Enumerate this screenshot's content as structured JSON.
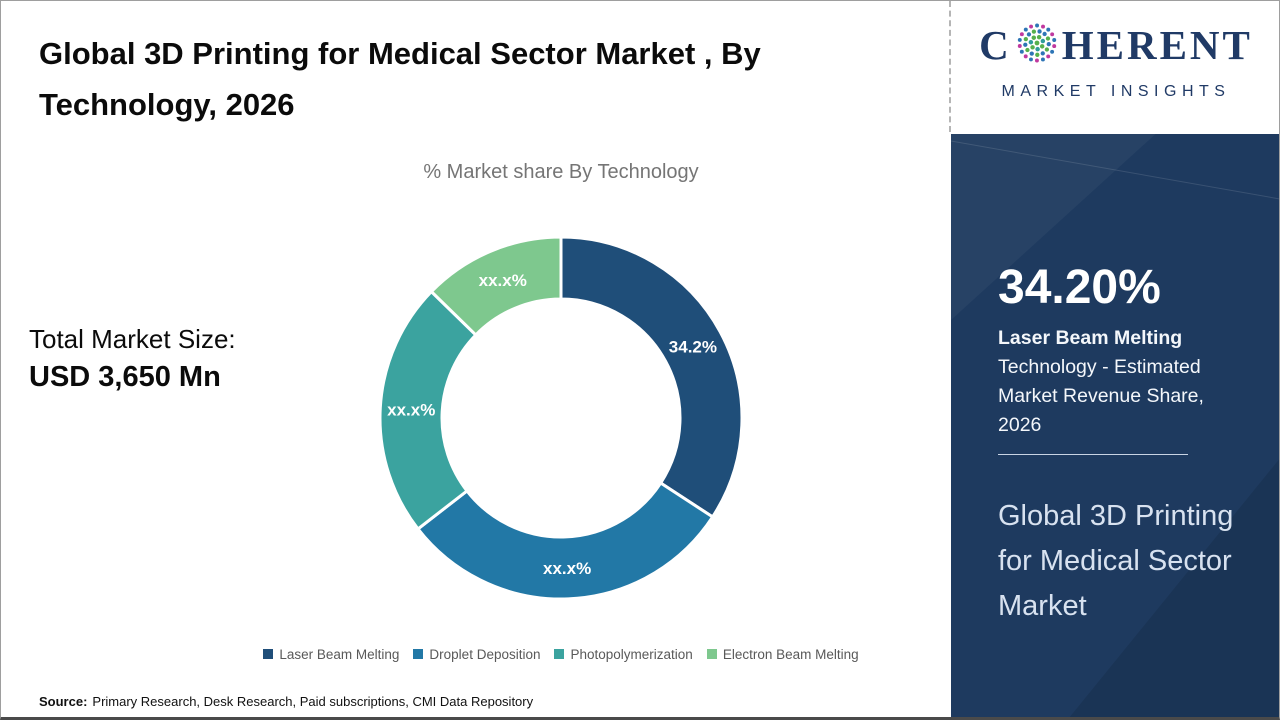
{
  "header": {
    "title": "Global 3D Printing for Medical Sector Market , By Technology, 2026"
  },
  "brand": {
    "prefix": "C",
    "suffix": "HERENT",
    "tagline": "MARKET INSIGHTS",
    "navy": "#203a66",
    "globe_colors": [
      "#56b04c",
      "#2e9d9a",
      "#2e75b6",
      "#c0399f"
    ]
  },
  "total_market": {
    "label": "Total Market Size:",
    "value": "USD 3,650 Mn"
  },
  "chart_data": {
    "type": "pie",
    "subtype": "donut",
    "title": "% Market share By Technology",
    "categories": [
      "Laser Beam Melting",
      "Droplet Deposition",
      "Photopolymerization",
      "Electron Beam Melting"
    ],
    "series": [
      {
        "name": "Laser Beam Melting",
        "value": 34.2,
        "label": "34.2%",
        "color": "#1F4E79"
      },
      {
        "name": "Droplet Deposition",
        "value": 30.3,
        "label": "xx.x%",
        "color": "#2278A6"
      },
      {
        "name": "Photopolymerization",
        "value": 22.8,
        "label": "xx.x%",
        "color": "#3BA39F"
      },
      {
        "name": "Electron Beam Melting",
        "value": 12.7,
        "label": "xx.x%",
        "color": "#7EC88E"
      }
    ],
    "start_angle_deg": 0,
    "direction": "clockwise",
    "inner_radius_ratio": 0.66,
    "legend_position": "bottom"
  },
  "sidebar": {
    "background": "#1e3a5f",
    "stat_value": "34.20%",
    "stat_desc_bold": "Laser Beam Melting",
    "stat_desc_rest": " Technology - Estimated Market Revenue Share, 2026",
    "panel_title": "Global 3D Printing for Medical Sector Market"
  },
  "source": {
    "label": "Source:",
    "text": "Primary Research, Desk Research, Paid subscriptions, CMI Data Repository"
  }
}
